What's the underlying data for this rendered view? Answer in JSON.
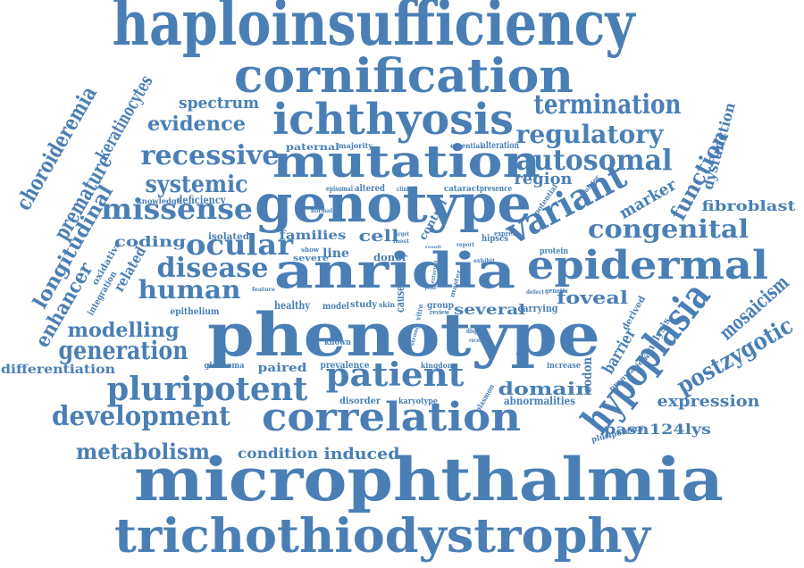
{
  "colors": {
    "word": "#4a7fb5",
    "background": "#ffffff"
  },
  "words": [
    "haploinsufficiency",
    "cornification",
    "ichthyosis",
    "termination",
    "spectrum",
    "evidence",
    "regulatory",
    "mutation",
    "recessive",
    "autosomal",
    "systemic",
    "genotype",
    "variant",
    "missense",
    "region",
    "fibroblast",
    "congenital",
    "ocular",
    "cell",
    "disease",
    "anridia",
    "epidermal",
    "human",
    "foveal",
    "modelling",
    "phenotype",
    "generation",
    "hypoplasia",
    "mosaicism",
    "pluripotent",
    "patient",
    "domain",
    "postzygotic",
    "development",
    "correlation",
    "expression",
    "metabolism",
    "condition",
    "induced",
    "pasn124lys",
    "microphthalmia",
    "trichothiodystrophy",
    "choroideremia",
    "keratinocytes",
    "longitudinal",
    "premature",
    "enhancer",
    "differentiation",
    "paternal",
    "majority",
    "essential",
    "alteration",
    "episomal",
    "altered",
    "clinical",
    "cataract",
    "presence",
    "knowledge",
    "deficiency",
    "coding",
    "isolated",
    "families",
    "line",
    "show",
    "severe",
    "donor",
    "related",
    "oxidative",
    "integration",
    "epithelium",
    "feature",
    "healthy",
    "model",
    "study",
    "skin",
    "cause",
    "several",
    "carrying",
    "known",
    "glaucoma",
    "paired",
    "prevalence",
    "kingdom",
    "stem",
    "disorder",
    "karyotype",
    "abnormalities",
    "codon",
    "barrier",
    "function",
    "dysfunction",
    "marker",
    "derived",
    "analysis",
    "prenylation",
    "increase",
    "pluripotency",
    "group",
    "vitro",
    "control",
    "hipscs",
    "express",
    "protein",
    "potential",
    "regulator",
    "genetic",
    "defect",
    "review",
    "display",
    "recent",
    "exhibit",
    "report",
    "target",
    "most",
    "result",
    "year",
    "master",
    "plasmon",
    "strong",
    "external",
    "normal"
  ]
}
